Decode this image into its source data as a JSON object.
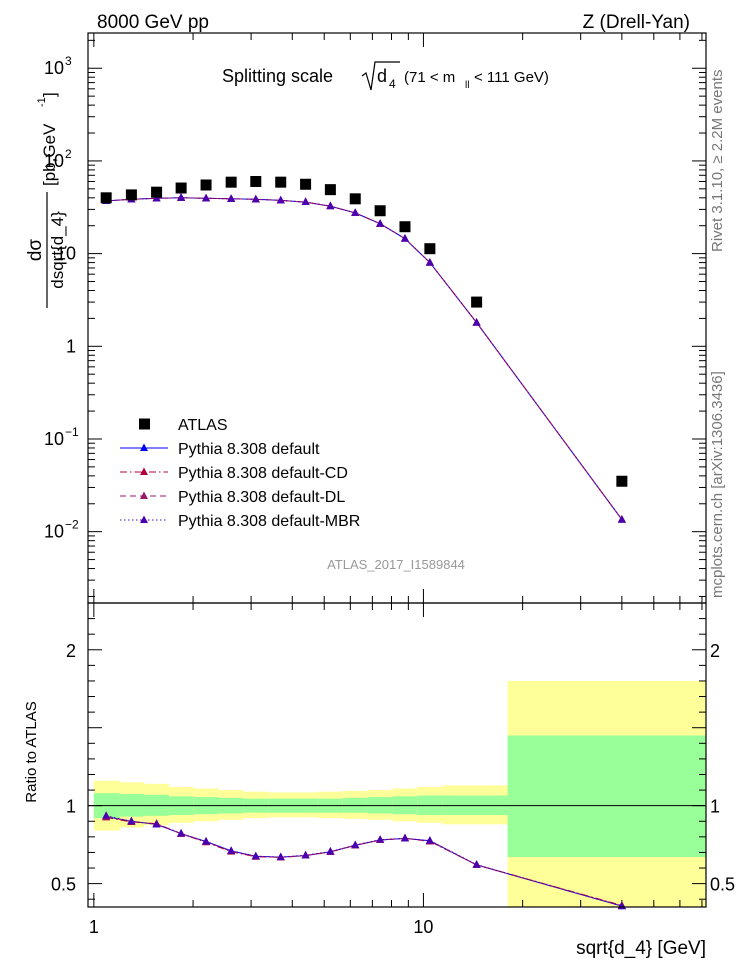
{
  "header": {
    "left": "8000 GeV pp",
    "right": "Z (Drell-Yan)"
  },
  "side_labels": {
    "rivet": "Rivet 3.1.10, ≥ 2.2M events",
    "mcplots": "mcplots.cern.ch [arXiv:1306.3436]"
  },
  "chart_data": [
    {
      "type": "scatter",
      "panel": "main",
      "title": "Splitting scale √d₄ (71 < mₗₗ < 111 GeV)",
      "title_main": "Splitting scale",
      "title_root": "d",
      "title_root_sub": "4",
      "title_range_a": "(71 < m",
      "title_range_sub": "ll",
      "title_range_b": " < 111 GeV)",
      "ylabel_num": "dσ",
      "ylabel_den": "dsqrt{d_4}",
      "ylabel_unit": "[pb,GeV",
      "ylabel_unit_sup": "-1",
      "ylabel_unit_end": "]",
      "xscale": "log",
      "yscale": "log",
      "xlim": [
        0.96,
        72
      ],
      "ylim": [
        0.0017,
        2400
      ],
      "y_ticks": [
        {
          "value": 0.01,
          "base": "10",
          "exp": "−2"
        },
        {
          "value": 0.1,
          "base": "10",
          "exp": "−1"
        },
        {
          "value": 1,
          "base": "1",
          "exp": ""
        },
        {
          "value": 10,
          "base": "10",
          "exp": ""
        },
        {
          "value": 100,
          "base": "10",
          "exp": "2"
        },
        {
          "value": 1000,
          "base": "10",
          "exp": "3"
        }
      ],
      "watermark": "ATLAS_2017_I1589844",
      "legend_position": "bottom-left",
      "x": [
        1.09,
        1.3,
        1.55,
        1.84,
        2.19,
        2.61,
        3.1,
        3.69,
        4.39,
        5.22,
        6.21,
        7.39,
        8.79,
        10.46,
        14.5,
        40.0
      ],
      "series": [
        {
          "name": "ATLAS",
          "color": "#000000",
          "marker": "square",
          "line": "none",
          "values": [
            40,
            43,
            46,
            51,
            55,
            59,
            60,
            59,
            56,
            49,
            39,
            29,
            19.5,
            11.3,
            3.0,
            0.035
          ]
        },
        {
          "name": "Pythia 8.308 default",
          "color": "#0000ff",
          "marker": "triangle",
          "line": "solid",
          "values": [
            37,
            38.5,
            39.5,
            40,
            39.5,
            39,
            38.5,
            37.5,
            36,
            32.5,
            27.5,
            21,
            14.5,
            8.0,
            1.8,
            0.0135
          ]
        },
        {
          "name": "Pythia 8.308 default-CD",
          "color": "#b0003a",
          "marker": "triangle",
          "line": "dashdot",
          "values": [
            37,
            38.5,
            39.5,
            40,
            39.5,
            39,
            38.5,
            37.5,
            36,
            32.5,
            27.5,
            21,
            14.5,
            8.0,
            1.8,
            0.0135
          ]
        },
        {
          "name": "Pythia 8.308 default-DL",
          "color": "#9a1a6a",
          "marker": "triangle",
          "line": "dashed",
          "values": [
            37,
            38.5,
            39.5,
            40,
            39.5,
            39,
            38.5,
            37.5,
            36,
            32.5,
            27.5,
            21,
            14.5,
            8.0,
            1.8,
            0.0135
          ]
        },
        {
          "name": "Pythia 8.308 default-MBR",
          "color": "#4a00b0",
          "marker": "triangle",
          "line": "dotted",
          "values": [
            37,
            38.5,
            39.5,
            40,
            39.5,
            39,
            38.5,
            37.5,
            36,
            32.5,
            27.5,
            21,
            14.5,
            8.0,
            1.8,
            0.0135
          ]
        }
      ]
    },
    {
      "type": "line",
      "panel": "ratio",
      "ylabel": "Ratio to ATLAS",
      "xlabel": "sqrt{d_4} [GeV]",
      "xscale": "log",
      "xlim": [
        0.96,
        72
      ],
      "ylim": [
        0.35,
        2.3
      ],
      "x_ticks": [
        {
          "value": 1,
          "label": "1"
        },
        {
          "value": 10,
          "label": "10"
        }
      ],
      "y_ticks": [
        {
          "value": 0.5,
          "label": "0.5"
        },
        {
          "value": 1,
          "label": "1"
        },
        {
          "value": 2,
          "label": "2"
        }
      ],
      "reference_line": 1,
      "bins": [
        {
          "lo": 1.0,
          "hi": 1.2,
          "stat": [
            0.92,
            1.08
          ],
          "total": [
            0.84,
            1.16
          ]
        },
        {
          "lo": 1.2,
          "hi": 1.42,
          "stat": [
            0.93,
            1.075
          ],
          "total": [
            0.86,
            1.15
          ]
        },
        {
          "lo": 1.42,
          "hi": 1.69,
          "stat": [
            0.935,
            1.07
          ],
          "total": [
            0.875,
            1.14
          ]
        },
        {
          "lo": 1.69,
          "hi": 2.01,
          "stat": [
            0.94,
            1.06
          ],
          "total": [
            0.89,
            1.12
          ]
        },
        {
          "lo": 2.01,
          "hi": 2.39,
          "stat": [
            0.945,
            1.055
          ],
          "total": [
            0.9,
            1.11
          ]
        },
        {
          "lo": 2.39,
          "hi": 2.84,
          "stat": [
            0.95,
            1.05
          ],
          "total": [
            0.91,
            1.1
          ]
        },
        {
          "lo": 2.84,
          "hi": 3.38,
          "stat": [
            0.955,
            1.045
          ],
          "total": [
            0.92,
            1.09
          ]
        },
        {
          "lo": 3.38,
          "hi": 4.02,
          "stat": [
            0.955,
            1.045
          ],
          "total": [
            0.925,
            1.085
          ]
        },
        {
          "lo": 4.02,
          "hi": 4.78,
          "stat": [
            0.955,
            1.045
          ],
          "total": [
            0.925,
            1.085
          ]
        },
        {
          "lo": 4.78,
          "hi": 5.69,
          "stat": [
            0.955,
            1.045
          ],
          "total": [
            0.92,
            1.09
          ]
        },
        {
          "lo": 5.69,
          "hi": 6.77,
          "stat": [
            0.955,
            1.05
          ],
          "total": [
            0.915,
            1.095
          ]
        },
        {
          "lo": 6.77,
          "hi": 8.05,
          "stat": [
            0.95,
            1.055
          ],
          "total": [
            0.91,
            1.1
          ]
        },
        {
          "lo": 8.05,
          "hi": 9.58,
          "stat": [
            0.945,
            1.06
          ],
          "total": [
            0.9,
            1.11
          ]
        },
        {
          "lo": 9.58,
          "hi": 11.4,
          "stat": [
            0.94,
            1.065
          ],
          "total": [
            0.89,
            1.12
          ]
        },
        {
          "lo": 11.4,
          "hi": 18.0,
          "stat": [
            0.94,
            1.065
          ],
          "total": [
            0.88,
            1.13
          ]
        },
        {
          "lo": 18.0,
          "hi": 72.0,
          "stat": [
            0.67,
            1.45
          ],
          "total": [
            0.35,
            1.8
          ]
        }
      ],
      "x": [
        1.09,
        1.3,
        1.55,
        1.84,
        2.19,
        2.61,
        3.1,
        3.69,
        4.39,
        5.22,
        6.21,
        7.39,
        8.79,
        10.46,
        14.5,
        40.0
      ],
      "series": [
        {
          "name": "Pythia 8.308 default",
          "color": "#0000ff",
          "line": "solid",
          "values": [
            0.93,
            0.9,
            0.88,
            0.82,
            0.77,
            0.71,
            0.675,
            0.67,
            0.68,
            0.705,
            0.745,
            0.78,
            0.79,
            0.775,
            0.62,
            0.355
          ]
        },
        {
          "name": "Pythia 8.308 default-CD",
          "color": "#b0003a",
          "line": "dashdot",
          "values": [
            0.925,
            0.895,
            0.885,
            0.82,
            0.765,
            0.705,
            0.672,
            0.668,
            0.68,
            0.703,
            0.745,
            0.78,
            0.792,
            0.77,
            0.62,
            0.36
          ]
        },
        {
          "name": "Pythia 8.308 default-DL",
          "color": "#9a1a6a",
          "line": "dashed",
          "values": [
            0.93,
            0.898,
            0.882,
            0.82,
            0.768,
            0.708,
            0.673,
            0.669,
            0.68,
            0.704,
            0.745,
            0.78,
            0.79,
            0.772,
            0.62,
            0.358
          ]
        },
        {
          "name": "Pythia 8.308 default-MBR",
          "color": "#4a00b0",
          "line": "dotted",
          "values": [
            0.935,
            0.9,
            0.88,
            0.822,
            0.77,
            0.71,
            0.676,
            0.67,
            0.682,
            0.706,
            0.748,
            0.782,
            0.79,
            0.776,
            0.622,
            0.356
          ]
        }
      ]
    }
  ]
}
